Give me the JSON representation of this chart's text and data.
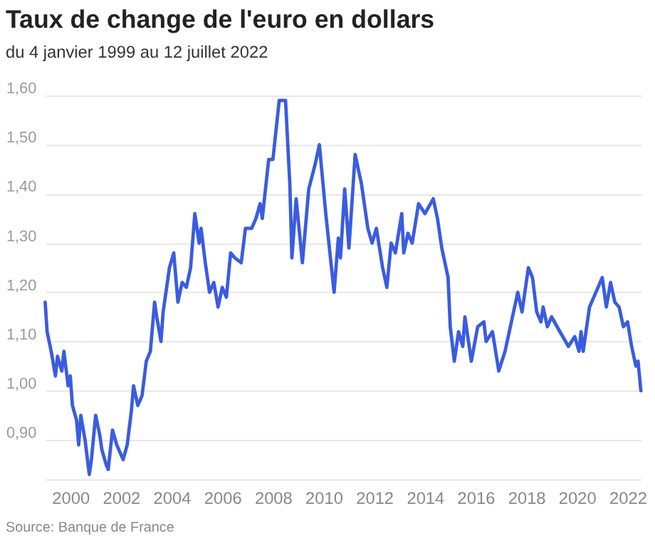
{
  "chart_data": {
    "type": "line",
    "title": "Taux de change de l'euro en dollars",
    "subtitle": "du 4 janvier 1999 au 12 juillet 2022",
    "annotations": [
      "Source: Banque de France"
    ],
    "x": [
      "1999-01-04",
      "1999-02",
      "1999-04",
      "1999-06",
      "1999-07",
      "1999-09",
      "1999-10",
      "1999-12",
      "2000-01",
      "2000-02",
      "2000-04",
      "2000-05",
      "2000-06",
      "2000-08",
      "2000-10",
      "2000-11",
      "2001-01",
      "2001-03",
      "2001-04",
      "2001-06",
      "2001-07",
      "2001-09",
      "2001-11",
      "2002-01",
      "2002-02",
      "2002-04",
      "2002-06",
      "2002-07",
      "2002-09",
      "2002-11",
      "2003-01",
      "2003-03",
      "2003-05",
      "2003-06",
      "2003-08",
      "2003-09",
      "2003-12",
      "2004-02",
      "2004-04",
      "2004-06",
      "2004-08",
      "2004-10",
      "2004-12",
      "2005-02",
      "2005-03",
      "2005-05",
      "2005-07",
      "2005-09",
      "2005-11",
      "2006-01",
      "2006-03",
      "2006-05",
      "2006-07",
      "2006-10",
      "2006-12",
      "2007-03",
      "2007-05",
      "2007-07",
      "2007-08",
      "2007-11",
      "2008-01",
      "2008-04",
      "2008-07",
      "2008-09",
      "2008-10",
      "2008-12",
      "2009-03",
      "2009-06",
      "2009-09",
      "2009-11",
      "2010-02",
      "2010-06",
      "2010-08",
      "2010-09",
      "2010-11",
      "2011-01",
      "2011-04",
      "2011-07",
      "2011-10",
      "2011-12",
      "2012-02",
      "2012-05",
      "2012-07",
      "2012-09",
      "2012-11",
      "2013-02",
      "2013-03",
      "2013-05",
      "2013-07",
      "2013-10",
      "2014-01",
      "2014-05",
      "2014-07",
      "2014-09",
      "2014-12",
      "2015-01",
      "2015-03",
      "2015-05",
      "2015-07",
      "2015-08",
      "2015-11",
      "2016-02",
      "2016-05",
      "2016-06",
      "2016-09",
      "2016-12",
      "2017-03",
      "2017-06",
      "2017-09",
      "2017-11",
      "2018-02",
      "2018-04",
      "2018-06",
      "2018-08",
      "2018-09",
      "2018-11",
      "2019-01",
      "2019-05",
      "2019-09",
      "2019-12",
      "2020-02",
      "2020-03",
      "2020-04",
      "2020-07",
      "2020-09",
      "2021-01",
      "2021-03",
      "2021-05",
      "2021-07",
      "2021-09",
      "2021-11",
      "2022-01",
      "2022-03",
      "2022-05",
      "2022-06",
      "2022-07-12"
    ],
    "series": [
      {
        "color": "#3a5ce0",
        "values": [
          1.18,
          1.12,
          1.08,
          1.03,
          1.07,
          1.04,
          1.08,
          1.01,
          1.03,
          0.97,
          0.94,
          0.89,
          0.95,
          0.9,
          0.83,
          0.86,
          0.95,
          0.91,
          0.88,
          0.85,
          0.84,
          0.92,
          0.89,
          0.87,
          0.86,
          0.89,
          0.96,
          1.01,
          0.97,
          0.99,
          1.06,
          1.08,
          1.18,
          1.15,
          1.1,
          1.16,
          1.25,
          1.28,
          1.18,
          1.22,
          1.21,
          1.25,
          1.36,
          1.3,
          1.33,
          1.26,
          1.2,
          1.22,
          1.17,
          1.21,
          1.19,
          1.28,
          1.27,
          1.26,
          1.33,
          1.33,
          1.35,
          1.38,
          1.35,
          1.47,
          1.47,
          1.59,
          1.59,
          1.42,
          1.27,
          1.39,
          1.26,
          1.41,
          1.46,
          1.5,
          1.36,
          1.2,
          1.31,
          1.27,
          1.41,
          1.29,
          1.48,
          1.42,
          1.33,
          1.3,
          1.33,
          1.25,
          1.21,
          1.3,
          1.28,
          1.36,
          1.28,
          1.32,
          1.3,
          1.38,
          1.36,
          1.39,
          1.35,
          1.29,
          1.23,
          1.13,
          1.06,
          1.12,
          1.09,
          1.15,
          1.06,
          1.13,
          1.14,
          1.1,
          1.12,
          1.04,
          1.08,
          1.14,
          1.2,
          1.16,
          1.25,
          1.23,
          1.16,
          1.14,
          1.17,
          1.13,
          1.15,
          1.12,
          1.09,
          1.11,
          1.08,
          1.12,
          1.08,
          1.17,
          1.19,
          1.23,
          1.17,
          1.22,
          1.18,
          1.17,
          1.13,
          1.14,
          1.09,
          1.05,
          1.06,
          1.0
        ]
      }
    ],
    "xlim": [
      "1999-01-04",
      "2022-07-12"
    ],
    "xticks": [
      "2000",
      "2002",
      "2004",
      "2006",
      "2008",
      "2010",
      "2012",
      "2014",
      "2016",
      "2018",
      "2020",
      "2022"
    ],
    "ylim": [
      0.82,
      1.6
    ],
    "yticks": [
      {
        "value": 0.9,
        "label": "0,90"
      },
      {
        "value": 1.0,
        "label": "1,00"
      },
      {
        "value": 1.1,
        "label": "1,10"
      },
      {
        "value": 1.2,
        "label": "1,20"
      },
      {
        "value": 1.3,
        "label": "1,30"
      },
      {
        "value": 1.4,
        "label": "1,40"
      },
      {
        "value": 1.5,
        "label": "1,50"
      },
      {
        "value": 1.6,
        "label": "1,60"
      }
    ],
    "grid": "y",
    "line_style": "solid",
    "marker": "none"
  }
}
